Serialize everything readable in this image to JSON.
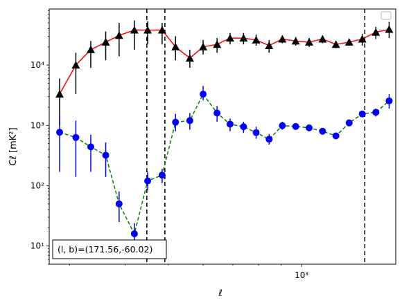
{
  "chart_data": {
    "type": "scatter",
    "xlabel": "ℓ",
    "ylabel": "Cℓ  [mK²]",
    "xscale": "log",
    "yscale": "log",
    "xlim": [
      270,
      1630
    ],
    "ylim": [
      5,
      85000
    ],
    "x_tick_labels": [
      {
        "value": 1000,
        "label": "10³"
      }
    ],
    "y_tick_labels": [
      {
        "value": 10,
        "label": "10¹"
      },
      {
        "value": 100,
        "label": "10²"
      },
      {
        "value": 1000,
        "label": "10³"
      },
      {
        "value": 10000,
        "label": "10⁴"
      }
    ],
    "grid": false,
    "legend": {
      "location": "top-right",
      "entries": []
    },
    "annotation": "(l, b)=(171.56,-60.02)",
    "vlines": [
      448,
      492,
      1388
    ],
    "series": [
      {
        "marker": "triangle",
        "marker_color": "#000000",
        "line_color": "#ff0000",
        "line_style": "solid",
        "errorbar_color": "#000000",
        "points": [
          {
            "x": 285,
            "y": 3300,
            "lo": 1000,
            "hi": 6000
          },
          {
            "x": 310,
            "y": 10000,
            "lo": 3300,
            "hi": 16000
          },
          {
            "x": 335,
            "y": 18000,
            "lo": 9000,
            "hi": 25000
          },
          {
            "x": 362,
            "y": 24000,
            "lo": 12000,
            "hi": 36000
          },
          {
            "x": 388,
            "y": 31000,
            "lo": 14000,
            "hi": 50000
          },
          {
            "x": 420,
            "y": 38000,
            "lo": 18000,
            "hi": 55000
          },
          {
            "x": 450,
            "y": 38000,
            "lo": 22000,
            "hi": 53000
          },
          {
            "x": 485,
            "y": 38000,
            "lo": 22000,
            "hi": 50000
          },
          {
            "x": 520,
            "y": 20000,
            "lo": 12000,
            "hi": 30000
          },
          {
            "x": 560,
            "y": 13000,
            "lo": 9000,
            "hi": 18000
          },
          {
            "x": 600,
            "y": 20000,
            "lo": 15000,
            "hi": 26000
          },
          {
            "x": 645,
            "y": 22000,
            "lo": 16000,
            "hi": 28000
          },
          {
            "x": 690,
            "y": 28000,
            "lo": 22000,
            "hi": 34000
          },
          {
            "x": 740,
            "y": 28000,
            "lo": 22000,
            "hi": 34000
          },
          {
            "x": 790,
            "y": 26000,
            "lo": 21000,
            "hi": 32000
          },
          {
            "x": 845,
            "y": 21000,
            "lo": 16000,
            "hi": 26000
          },
          {
            "x": 905,
            "y": 27000,
            "lo": 23000,
            "hi": 31000
          },
          {
            "x": 970,
            "y": 25000,
            "lo": 21000,
            "hi": 29000
          },
          {
            "x": 1040,
            "y": 24000,
            "lo": 20000,
            "hi": 28000
          },
          {
            "x": 1115,
            "y": 27000,
            "lo": 23000,
            "hi": 31000
          },
          {
            "x": 1195,
            "y": 22000,
            "lo": 19000,
            "hi": 25000
          },
          {
            "x": 1280,
            "y": 24000,
            "lo": 21000,
            "hi": 27000
          },
          {
            "x": 1370,
            "y": 27000,
            "lo": 21000,
            "hi": 33000
          },
          {
            "x": 1470,
            "y": 35000,
            "lo": 27000,
            "hi": 43000
          },
          {
            "x": 1575,
            "y": 39000,
            "lo": 28000,
            "hi": 52000
          }
        ]
      },
      {
        "marker": "circle",
        "marker_color": "#0000ff",
        "line_color": "#008000",
        "line_style": "dashed",
        "errorbar_color": "#0000ff",
        "points": [
          {
            "x": 285,
            "y": 770,
            "lo": 170,
            "hi": 1400
          },
          {
            "x": 310,
            "y": 630,
            "lo": 140,
            "hi": 1200
          },
          {
            "x": 335,
            "y": 440,
            "lo": 170,
            "hi": 700
          },
          {
            "x": 362,
            "y": 320,
            "lo": 140,
            "hi": 520
          },
          {
            "x": 388,
            "y": 50,
            "lo": 25,
            "hi": 80
          },
          {
            "x": 420,
            "y": 16,
            "lo": 9,
            "hi": 24
          },
          {
            "x": 450,
            "y": 120,
            "lo": 85,
            "hi": 170
          },
          {
            "x": 485,
            "y": 150,
            "lo": 110,
            "hi": 190
          },
          {
            "x": 520,
            "y": 1130,
            "lo": 800,
            "hi": 1550
          },
          {
            "x": 560,
            "y": 1200,
            "lo": 850,
            "hi": 1600
          },
          {
            "x": 600,
            "y": 3300,
            "lo": 2600,
            "hi": 4500
          },
          {
            "x": 645,
            "y": 1600,
            "lo": 1150,
            "hi": 2100
          },
          {
            "x": 690,
            "y": 1050,
            "lo": 800,
            "hi": 1300
          },
          {
            "x": 740,
            "y": 950,
            "lo": 750,
            "hi": 1150
          },
          {
            "x": 790,
            "y": 760,
            "lo": 600,
            "hi": 950
          },
          {
            "x": 845,
            "y": 590,
            "lo": 480,
            "hi": 720
          },
          {
            "x": 905,
            "y": 990,
            "lo": 850,
            "hi": 1150
          },
          {
            "x": 970,
            "y": 960,
            "lo": 850,
            "hi": 1080
          },
          {
            "x": 1040,
            "y": 910,
            "lo": 800,
            "hi": 1030
          },
          {
            "x": 1115,
            "y": 800,
            "lo": 700,
            "hi": 900
          },
          {
            "x": 1195,
            "y": 670,
            "lo": 600,
            "hi": 760
          },
          {
            "x": 1280,
            "y": 1100,
            "lo": 1000,
            "hi": 1200
          },
          {
            "x": 1370,
            "y": 1550,
            "lo": 1380,
            "hi": 1720
          },
          {
            "x": 1470,
            "y": 1650,
            "lo": 1400,
            "hi": 1900
          },
          {
            "x": 1575,
            "y": 2550,
            "lo": 1900,
            "hi": 3300
          }
        ]
      }
    ]
  }
}
